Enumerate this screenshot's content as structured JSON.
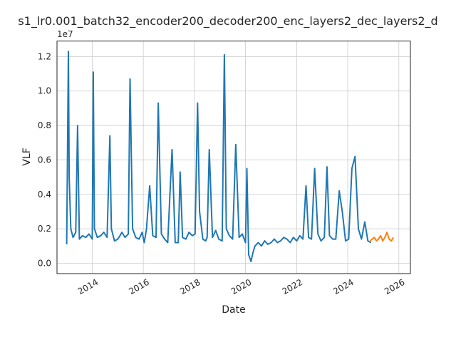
{
  "chart_data": {
    "type": "line",
    "title": "s1_lr0.001_batch32_encoder200_decoder200_enc_layers2_dec_layers2_d",
    "xlabel": "Date",
    "ylabel": "VLF",
    "y_offset_label": "1e7",
    "xlim": [
      "2012-08-15",
      "2026-06-15"
    ],
    "ylim": [
      -0.06,
      1.29
    ],
    "y_scale_factor": 10000000,
    "grid": true,
    "legend": false,
    "xticks": [
      {
        "label": "2014",
        "date": "2014-01-01"
      },
      {
        "label": "2016",
        "date": "2016-01-01"
      },
      {
        "label": "2018",
        "date": "2018-01-01"
      },
      {
        "label": "2020",
        "date": "2020-01-01"
      },
      {
        "label": "2022",
        "date": "2022-01-01"
      },
      {
        "label": "2024",
        "date": "2024-01-01"
      },
      {
        "label": "2026",
        "date": "2026-01-01"
      }
    ],
    "yticks": [
      {
        "label": "0.0",
        "value": 0.0
      },
      {
        "label": "0.2",
        "value": 0.2
      },
      {
        "label": "0.4",
        "value": 0.4
      },
      {
        "label": "0.6",
        "value": 0.6
      },
      {
        "label": "0.8",
        "value": 0.8
      },
      {
        "label": "1.0",
        "value": 1.0
      },
      {
        "label": "1.2",
        "value": 1.2
      }
    ],
    "series": [
      {
        "color": "#1f77b4",
        "x": [
          "2013-01-01",
          "2013-01-25",
          "2013-02-05",
          "2013-03-01",
          "2013-04-01",
          "2013-05-10",
          "2013-06-05",
          "2013-07-01",
          "2013-08-15",
          "2013-10-01",
          "2013-11-15",
          "2014-01-01",
          "2014-01-15",
          "2014-02-01",
          "2014-03-15",
          "2014-05-01",
          "2014-06-15",
          "2014-08-01",
          "2014-09-10",
          "2014-10-01",
          "2014-11-15",
          "2015-01-01",
          "2015-02-01",
          "2015-03-01",
          "2015-04-15",
          "2015-06-01",
          "2015-06-25",
          "2015-08-01",
          "2015-09-15",
          "2015-11-01",
          "2015-12-15",
          "2016-01-15",
          "2016-02-15",
          "2016-04-01",
          "2016-05-15",
          "2016-07-01",
          "2016-08-01",
          "2016-09-15",
          "2016-11-01",
          "2016-12-15",
          "2017-01-15",
          "2017-02-15",
          "2017-04-01",
          "2017-05-15",
          "2017-06-10",
          "2017-07-15",
          "2017-09-01",
          "2017-10-15",
          "2017-12-01",
          "2018-01-10",
          "2018-02-15",
          "2018-03-15",
          "2018-05-01",
          "2018-06-10",
          "2018-07-01",
          "2018-08-01",
          "2018-09-15",
          "2018-11-01",
          "2018-12-15",
          "2019-02-01",
          "2019-03-05",
          "2019-04-01",
          "2019-05-15",
          "2019-07-01",
          "2019-08-15",
          "2019-10-01",
          "2019-11-15",
          "2020-01-01",
          "2020-01-20",
          "2020-02-15",
          "2020-03-20",
          "2020-04-15",
          "2020-05-15",
          "2020-07-01",
          "2020-08-15",
          "2020-10-01",
          "2020-11-15",
          "2021-01-01",
          "2021-02-15",
          "2021-04-01",
          "2021-05-15",
          "2021-07-01",
          "2021-08-15",
          "2021-10-01",
          "2021-11-15",
          "2022-01-01",
          "2022-02-15",
          "2022-04-01",
          "2022-05-15",
          "2022-06-20",
          "2022-08-01",
          "2022-09-15",
          "2022-11-01",
          "2022-12-15",
          "2023-02-01",
          "2023-03-10",
          "2023-04-15",
          "2023-06-01",
          "2023-07-15",
          "2023-09-01",
          "2023-10-15",
          "2023-12-01",
          "2024-01-15",
          "2024-03-01",
          "2024-04-15",
          "2024-06-01",
          "2024-07-15",
          "2024-09-01",
          "2024-10-15",
          "2024-12-01"
        ],
        "y": [
          0.11,
          1.23,
          0.5,
          0.2,
          0.15,
          0.18,
          0.8,
          0.14,
          0.16,
          0.15,
          0.17,
          0.14,
          1.11,
          0.2,
          0.15,
          0.16,
          0.18,
          0.15,
          0.74,
          0.2,
          0.13,
          0.14,
          0.16,
          0.18,
          0.15,
          0.17,
          1.07,
          0.2,
          0.15,
          0.14,
          0.18,
          0.12,
          0.2,
          0.45,
          0.16,
          0.15,
          0.93,
          0.17,
          0.14,
          0.12,
          0.4,
          0.66,
          0.12,
          0.12,
          0.53,
          0.15,
          0.14,
          0.18,
          0.16,
          0.17,
          0.93,
          0.3,
          0.14,
          0.13,
          0.15,
          0.66,
          0.15,
          0.19,
          0.14,
          0.13,
          1.21,
          0.2,
          0.16,
          0.14,
          0.69,
          0.15,
          0.17,
          0.12,
          0.55,
          0.05,
          0.01,
          0.06,
          0.1,
          0.12,
          0.1,
          0.13,
          0.11,
          0.12,
          0.14,
          0.12,
          0.13,
          0.15,
          0.14,
          0.12,
          0.15,
          0.13,
          0.16,
          0.14,
          0.45,
          0.15,
          0.14,
          0.55,
          0.17,
          0.13,
          0.15,
          0.56,
          0.16,
          0.14,
          0.14,
          0.42,
          0.3,
          0.13,
          0.14,
          0.55,
          0.62,
          0.2,
          0.14,
          0.24,
          0.13,
          0.12
        ]
      },
      {
        "color": "#ff7f0e",
        "x": [
          "2024-11-15",
          "2024-12-15",
          "2025-01-15",
          "2025-02-15",
          "2025-03-15",
          "2025-04-15",
          "2025-05-15",
          "2025-06-15",
          "2025-07-15",
          "2025-08-15",
          "2025-09-15",
          "2025-10-15"
        ],
        "y": [
          0.13,
          0.14,
          0.15,
          0.13,
          0.14,
          0.16,
          0.13,
          0.15,
          0.18,
          0.14,
          0.13,
          0.15
        ]
      }
    ]
  }
}
